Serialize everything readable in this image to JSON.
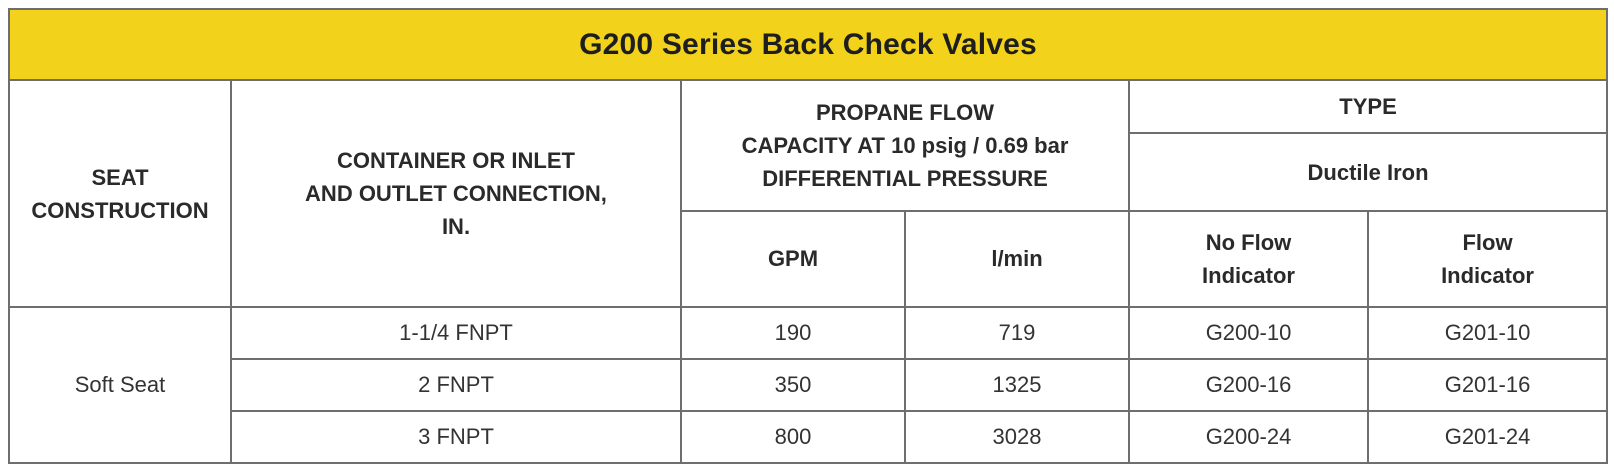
{
  "title": "G200 Series Back Check Valves",
  "headers": {
    "seat_construction": "SEAT\nCONSTRUCTION",
    "connection": "CONTAINER OR INLET\nAND OUTLET CONNECTION,\nIN.",
    "flow_capacity": "PROPANE FLOW\nCAPACITY AT 10 psig / 0.69 bar\nDIFFERENTIAL PRESSURE",
    "type": "TYPE",
    "material": "Ductile Iron",
    "gpm": "GPM",
    "lmin": "l/min",
    "no_flow_indicator": "No Flow\nIndicator",
    "flow_indicator": "Flow\nIndicator"
  },
  "seat_value": "Soft Seat",
  "rows": [
    {
      "connection": "1-1/4 FNPT",
      "gpm": "190",
      "lmin": "719",
      "no_flow": "G200-10",
      "flow": "G201-10"
    },
    {
      "connection": "2 FNPT",
      "gpm": "350",
      "lmin": "1325",
      "no_flow": "G200-16",
      "flow": "G201-16"
    },
    {
      "connection": "3 FNPT",
      "gpm": "800",
      "lmin": "3028",
      "no_flow": "G200-24",
      "flow": "G201-24"
    }
  ]
}
